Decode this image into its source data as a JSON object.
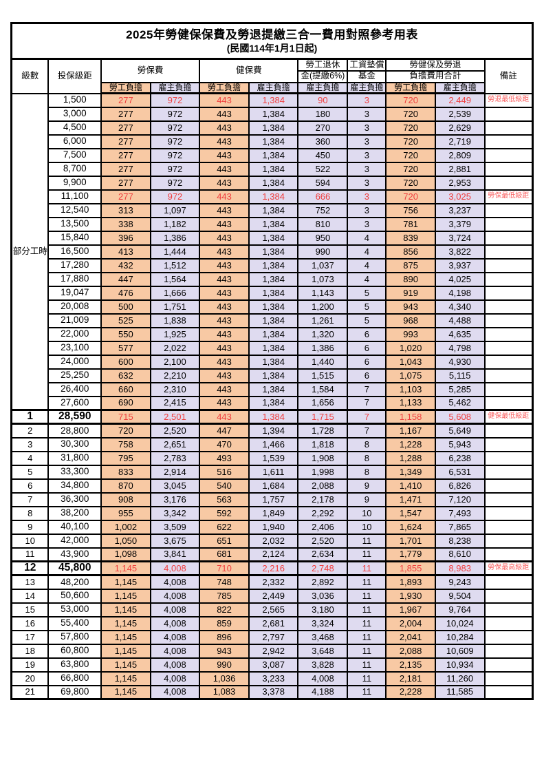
{
  "title": "2025年勞健保保費及勞退提繳三合一費用對照參考用表",
  "subtitle": "(民國114年1月1日起)",
  "colors": {
    "employee_col_bg": "#F8C9A4",
    "employer_col_bg": "#DFDBF0",
    "highlight_red": "#F03E3E",
    "remark_red": "#FA6060",
    "border": "#000000"
  },
  "header": {
    "level": "級數",
    "bracket": "投保級距",
    "labor": "勞保費",
    "health": "健保費",
    "pension_l1": "勞工退休",
    "pension_l2": "金(提繳6%)",
    "fund_l1": "工資墊償",
    "fund_l2": "基金",
    "total_l1": "勞健保及勞退",
    "total_l2": "負擔費用合計",
    "remark": "備註",
    "employee": "勞工負擔",
    "employer": "雇主負擔"
  },
  "part_time": {
    "label": "部分工時",
    "rowspan": 23
  },
  "rows": [
    {
      "level": "",
      "bracket": "1,500",
      "li_emp": "277",
      "li_er": "972",
      "hi_emp": "443",
      "hi_er": "1,384",
      "pension": "90",
      "fund": "3",
      "tot_emp": "720",
      "tot_er": "2,449",
      "remark": "勞退最低級距",
      "red": true,
      "key": false
    },
    {
      "level": "",
      "bracket": "3,000",
      "li_emp": "277",
      "li_er": "972",
      "hi_emp": "443",
      "hi_er": "1,384",
      "pension": "180",
      "fund": "3",
      "tot_emp": "720",
      "tot_er": "2,539",
      "remark": "",
      "red": false,
      "key": false
    },
    {
      "level": "",
      "bracket": "4,500",
      "li_emp": "277",
      "li_er": "972",
      "hi_emp": "443",
      "hi_er": "1,384",
      "pension": "270",
      "fund": "3",
      "tot_emp": "720",
      "tot_er": "2,629",
      "remark": "",
      "red": false,
      "key": false
    },
    {
      "level": "",
      "bracket": "6,000",
      "li_emp": "277",
      "li_er": "972",
      "hi_emp": "443",
      "hi_er": "1,384",
      "pension": "360",
      "fund": "3",
      "tot_emp": "720",
      "tot_er": "2,719",
      "remark": "",
      "red": false,
      "key": false
    },
    {
      "level": "",
      "bracket": "7,500",
      "li_emp": "277",
      "li_er": "972",
      "hi_emp": "443",
      "hi_er": "1,384",
      "pension": "450",
      "fund": "3",
      "tot_emp": "720",
      "tot_er": "2,809",
      "remark": "",
      "red": false,
      "key": false
    },
    {
      "level": "",
      "bracket": "8,700",
      "li_emp": "277",
      "li_er": "972",
      "hi_emp": "443",
      "hi_er": "1,384",
      "pension": "522",
      "fund": "3",
      "tot_emp": "720",
      "tot_er": "2,881",
      "remark": "",
      "red": false,
      "key": false
    },
    {
      "level": "",
      "bracket": "9,900",
      "li_emp": "277",
      "li_er": "972",
      "hi_emp": "443",
      "hi_er": "1,384",
      "pension": "594",
      "fund": "3",
      "tot_emp": "720",
      "tot_er": "2,953",
      "remark": "",
      "red": false,
      "key": false
    },
    {
      "level": "",
      "bracket": "11,100",
      "li_emp": "277",
      "li_er": "972",
      "hi_emp": "443",
      "hi_er": "1,384",
      "pension": "666",
      "fund": "3",
      "tot_emp": "720",
      "tot_er": "3,025",
      "remark": "勞保最低級距",
      "red": true,
      "key": false
    },
    {
      "level": "",
      "bracket": "12,540",
      "li_emp": "313",
      "li_er": "1,097",
      "hi_emp": "443",
      "hi_er": "1,384",
      "pension": "752",
      "fund": "3",
      "tot_emp": "756",
      "tot_er": "3,237",
      "remark": "",
      "red": false,
      "key": false
    },
    {
      "level": "",
      "bracket": "13,500",
      "li_emp": "338",
      "li_er": "1,182",
      "hi_emp": "443",
      "hi_er": "1,384",
      "pension": "810",
      "fund": "3",
      "tot_emp": "781",
      "tot_er": "3,379",
      "remark": "",
      "red": false,
      "key": false
    },
    {
      "level": "",
      "bracket": "15,840",
      "li_emp": "396",
      "li_er": "1,386",
      "hi_emp": "443",
      "hi_er": "1,384",
      "pension": "950",
      "fund": "4",
      "tot_emp": "839",
      "tot_er": "3,724",
      "remark": "",
      "red": false,
      "key": false
    },
    {
      "level": "",
      "bracket": "16,500",
      "li_emp": "413",
      "li_er": "1,444",
      "hi_emp": "443",
      "hi_er": "1,384",
      "pension": "990",
      "fund": "4",
      "tot_emp": "856",
      "tot_er": "3,822",
      "remark": "",
      "red": false,
      "key": false
    },
    {
      "level": "",
      "bracket": "17,280",
      "li_emp": "432",
      "li_er": "1,512",
      "hi_emp": "443",
      "hi_er": "1,384",
      "pension": "1,037",
      "fund": "4",
      "tot_emp": "875",
      "tot_er": "3,937",
      "remark": "",
      "red": false,
      "key": false
    },
    {
      "level": "",
      "bracket": "17,880",
      "li_emp": "447",
      "li_er": "1,564",
      "hi_emp": "443",
      "hi_er": "1,384",
      "pension": "1,073",
      "fund": "4",
      "tot_emp": "890",
      "tot_er": "4,025",
      "remark": "",
      "red": false,
      "key": false
    },
    {
      "level": "",
      "bracket": "19,047",
      "li_emp": "476",
      "li_er": "1,666",
      "hi_emp": "443",
      "hi_er": "1,384",
      "pension": "1,143",
      "fund": "5",
      "tot_emp": "919",
      "tot_er": "4,198",
      "remark": "",
      "red": false,
      "key": false
    },
    {
      "level": "",
      "bracket": "20,008",
      "li_emp": "500",
      "li_er": "1,751",
      "hi_emp": "443",
      "hi_er": "1,384",
      "pension": "1,200",
      "fund": "5",
      "tot_emp": "943",
      "tot_er": "4,340",
      "remark": "",
      "red": false,
      "key": false
    },
    {
      "level": "",
      "bracket": "21,009",
      "li_emp": "525",
      "li_er": "1,838",
      "hi_emp": "443",
      "hi_er": "1,384",
      "pension": "1,261",
      "fund": "5",
      "tot_emp": "968",
      "tot_er": "4,488",
      "remark": "",
      "red": false,
      "key": false
    },
    {
      "level": "",
      "bracket": "22,000",
      "li_emp": "550",
      "li_er": "1,925",
      "hi_emp": "443",
      "hi_er": "1,384",
      "pension": "1,320",
      "fund": "6",
      "tot_emp": "993",
      "tot_er": "4,635",
      "remark": "",
      "red": false,
      "key": false
    },
    {
      "level": "",
      "bracket": "23,100",
      "li_emp": "577",
      "li_er": "2,022",
      "hi_emp": "443",
      "hi_er": "1,384",
      "pension": "1,386",
      "fund": "6",
      "tot_emp": "1,020",
      "tot_er": "4,798",
      "remark": "",
      "red": false,
      "key": false
    },
    {
      "level": "",
      "bracket": "24,000",
      "li_emp": "600",
      "li_er": "2,100",
      "hi_emp": "443",
      "hi_er": "1,384",
      "pension": "1,440",
      "fund": "6",
      "tot_emp": "1,043",
      "tot_er": "4,930",
      "remark": "",
      "red": false,
      "key": false
    },
    {
      "level": "",
      "bracket": "25,250",
      "li_emp": "632",
      "li_er": "2,210",
      "hi_emp": "443",
      "hi_er": "1,384",
      "pension": "1,515",
      "fund": "6",
      "tot_emp": "1,075",
      "tot_er": "5,115",
      "remark": "",
      "red": false,
      "key": false
    },
    {
      "level": "",
      "bracket": "26,400",
      "li_emp": "660",
      "li_er": "2,310",
      "hi_emp": "443",
      "hi_er": "1,384",
      "pension": "1,584",
      "fund": "7",
      "tot_emp": "1,103",
      "tot_er": "5,285",
      "remark": "",
      "red": false,
      "key": false
    },
    {
      "level": "",
      "bracket": "27,600",
      "li_emp": "690",
      "li_er": "2,415",
      "hi_emp": "443",
      "hi_er": "1,384",
      "pension": "1,656",
      "fund": "7",
      "tot_emp": "1,133",
      "tot_er": "5,462",
      "remark": "",
      "red": false,
      "key": false
    },
    {
      "level": "1",
      "bracket": "28,590",
      "li_emp": "715",
      "li_er": "2,501",
      "hi_emp": "443",
      "hi_er": "1,384",
      "pension": "1,715",
      "fund": "7",
      "tot_emp": "1,158",
      "tot_er": "5,608",
      "remark": "健保最低級距",
      "red": true,
      "key": true
    },
    {
      "level": "2",
      "bracket": "28,800",
      "li_emp": "720",
      "li_er": "2,520",
      "hi_emp": "447",
      "hi_er": "1,394",
      "pension": "1,728",
      "fund": "7",
      "tot_emp": "1,167",
      "tot_er": "5,649",
      "remark": "",
      "red": false,
      "key": false
    },
    {
      "level": "3",
      "bracket": "30,300",
      "li_emp": "758",
      "li_er": "2,651",
      "hi_emp": "470",
      "hi_er": "1,466",
      "pension": "1,818",
      "fund": "8",
      "tot_emp": "1,228",
      "tot_er": "5,943",
      "remark": "",
      "red": false,
      "key": false
    },
    {
      "level": "4",
      "bracket": "31,800",
      "li_emp": "795",
      "li_er": "2,783",
      "hi_emp": "493",
      "hi_er": "1,539",
      "pension": "1,908",
      "fund": "8",
      "tot_emp": "1,288",
      "tot_er": "6,238",
      "remark": "",
      "red": false,
      "key": false
    },
    {
      "level": "5",
      "bracket": "33,300",
      "li_emp": "833",
      "li_er": "2,914",
      "hi_emp": "516",
      "hi_er": "1,611",
      "pension": "1,998",
      "fund": "8",
      "tot_emp": "1,349",
      "tot_er": "6,531",
      "remark": "",
      "red": false,
      "key": false
    },
    {
      "level": "6",
      "bracket": "34,800",
      "li_emp": "870",
      "li_er": "3,045",
      "hi_emp": "540",
      "hi_er": "1,684",
      "pension": "2,088",
      "fund": "9",
      "tot_emp": "1,410",
      "tot_er": "6,826",
      "remark": "",
      "red": false,
      "key": false
    },
    {
      "level": "7",
      "bracket": "36,300",
      "li_emp": "908",
      "li_er": "3,176",
      "hi_emp": "563",
      "hi_er": "1,757",
      "pension": "2,178",
      "fund": "9",
      "tot_emp": "1,471",
      "tot_er": "7,120",
      "remark": "",
      "red": false,
      "key": false
    },
    {
      "level": "8",
      "bracket": "38,200",
      "li_emp": "955",
      "li_er": "3,342",
      "hi_emp": "592",
      "hi_er": "1,849",
      "pension": "2,292",
      "fund": "10",
      "tot_emp": "1,547",
      "tot_er": "7,493",
      "remark": "",
      "red": false,
      "key": false
    },
    {
      "level": "9",
      "bracket": "40,100",
      "li_emp": "1,002",
      "li_er": "3,509",
      "hi_emp": "622",
      "hi_er": "1,940",
      "pension": "2,406",
      "fund": "10",
      "tot_emp": "1,624",
      "tot_er": "7,865",
      "remark": "",
      "red": false,
      "key": false
    },
    {
      "level": "10",
      "bracket": "42,000",
      "li_emp": "1,050",
      "li_er": "3,675",
      "hi_emp": "651",
      "hi_er": "2,032",
      "pension": "2,520",
      "fund": "11",
      "tot_emp": "1,701",
      "tot_er": "8,238",
      "remark": "",
      "red": false,
      "key": false
    },
    {
      "level": "11",
      "bracket": "43,900",
      "li_emp": "1,098",
      "li_er": "3,841",
      "hi_emp": "681",
      "hi_er": "2,124",
      "pension": "2,634",
      "fund": "11",
      "tot_emp": "1,779",
      "tot_er": "8,610",
      "remark": "",
      "red": false,
      "key": false
    },
    {
      "level": "12",
      "bracket": "45,800",
      "li_emp": "1,145",
      "li_er": "4,008",
      "hi_emp": "710",
      "hi_er": "2,216",
      "pension": "2,748",
      "fund": "11",
      "tot_emp": "1,855",
      "tot_er": "8,983",
      "remark": "勞保最高級距",
      "red": true,
      "key": true
    },
    {
      "level": "13",
      "bracket": "48,200",
      "li_emp": "1,145",
      "li_er": "4,008",
      "hi_emp": "748",
      "hi_er": "2,332",
      "pension": "2,892",
      "fund": "11",
      "tot_emp": "1,893",
      "tot_er": "9,243",
      "remark": "",
      "red": false,
      "key": false
    },
    {
      "level": "14",
      "bracket": "50,600",
      "li_emp": "1,145",
      "li_er": "4,008",
      "hi_emp": "785",
      "hi_er": "2,449",
      "pension": "3,036",
      "fund": "11",
      "tot_emp": "1,930",
      "tot_er": "9,504",
      "remark": "",
      "red": false,
      "key": false
    },
    {
      "level": "15",
      "bracket": "53,000",
      "li_emp": "1,145",
      "li_er": "4,008",
      "hi_emp": "822",
      "hi_er": "2,565",
      "pension": "3,180",
      "fund": "11",
      "tot_emp": "1,967",
      "tot_er": "9,764",
      "remark": "",
      "red": false,
      "key": false
    },
    {
      "level": "16",
      "bracket": "55,400",
      "li_emp": "1,145",
      "li_er": "4,008",
      "hi_emp": "859",
      "hi_er": "2,681",
      "pension": "3,324",
      "fund": "11",
      "tot_emp": "2,004",
      "tot_er": "10,024",
      "remark": "",
      "red": false,
      "key": false
    },
    {
      "level": "17",
      "bracket": "57,800",
      "li_emp": "1,145",
      "li_er": "4,008",
      "hi_emp": "896",
      "hi_er": "2,797",
      "pension": "3,468",
      "fund": "11",
      "tot_emp": "2,041",
      "tot_er": "10,284",
      "remark": "",
      "red": false,
      "key": false
    },
    {
      "level": "18",
      "bracket": "60,800",
      "li_emp": "1,145",
      "li_er": "4,008",
      "hi_emp": "943",
      "hi_er": "2,942",
      "pension": "3,648",
      "fund": "11",
      "tot_emp": "2,088",
      "tot_er": "10,609",
      "remark": "",
      "red": false,
      "key": false
    },
    {
      "level": "19",
      "bracket": "63,800",
      "li_emp": "1,145",
      "li_er": "4,008",
      "hi_emp": "990",
      "hi_er": "3,087",
      "pension": "3,828",
      "fund": "11",
      "tot_emp": "2,135",
      "tot_er": "10,934",
      "remark": "",
      "red": false,
      "key": false
    },
    {
      "level": "20",
      "bracket": "66,800",
      "li_emp": "1,145",
      "li_er": "4,008",
      "hi_emp": "1,036",
      "hi_er": "3,233",
      "pension": "4,008",
      "fund": "11",
      "tot_emp": "2,181",
      "tot_er": "11,260",
      "remark": "",
      "red": false,
      "key": false
    },
    {
      "level": "21",
      "bracket": "69,800",
      "li_emp": "1,145",
      "li_er": "4,008",
      "hi_emp": "1,083",
      "hi_er": "3,378",
      "pension": "4,188",
      "fund": "11",
      "tot_emp": "2,228",
      "tot_er": "11,585",
      "remark": "",
      "red": false,
      "key": false
    }
  ]
}
